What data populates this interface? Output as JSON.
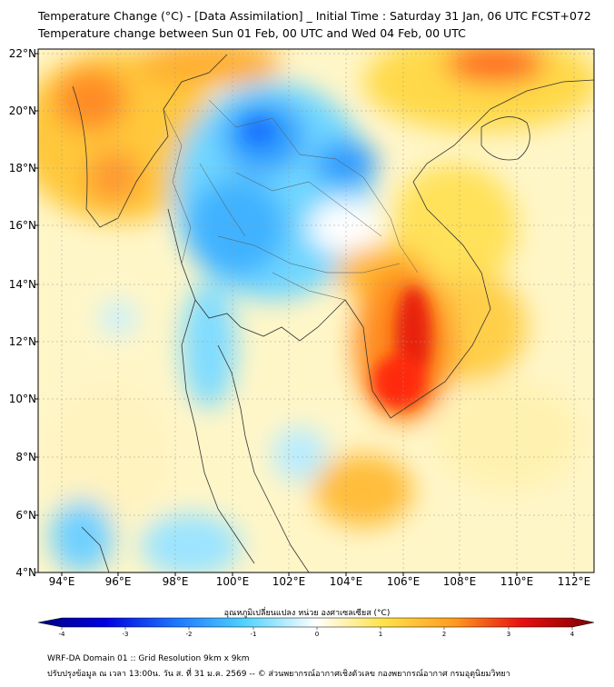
{
  "header": {
    "title_line1": "Temperature Change (°C) - [Data Assimilation] _ Initial Time : Saturday 31 Jan, 06 UTC FCST+072",
    "title_line2": "Temperature change between Sun 01 Feb, 00 UTC and Wed 04 Feb, 00 UTC"
  },
  "map": {
    "latitude_labels": [
      "22°N",
      "20°N",
      "18°N",
      "16°N",
      "14°N",
      "12°N",
      "10°N",
      "8°N",
      "6°N",
      "4°N"
    ],
    "longitude_labels": [
      "94°E",
      "96°E",
      "98°E",
      "100°E",
      "102°E",
      "104°E",
      "106°E",
      "108°E",
      "110°E",
      "112°E"
    ],
    "lon_range": [
      93,
      112.5
    ],
    "lat_range": [
      4,
      22.3
    ]
  },
  "colorbar": {
    "title": "อุณหภูมิเปลี่ยนแปลง หน่วย องศาเซลเซียส (°C)",
    "ticks": [
      "-4",
      "-3",
      "-2",
      "-1",
      "0",
      "1",
      "2",
      "3",
      "4"
    ],
    "range": [
      -4,
      4
    ]
  },
  "footer": {
    "line1": "WRF-DA Domain 01 :: Grid Resolution 9km x 9km",
    "line2": "ปรับปรุงข้อมูล ณ เวลา 13:00น. วัน ส. ที่ 31 ม.ค. 2569 -- © ส่วนพยากรณ์อากาศเชิงตัวเลข กองพยากรณ์อากาศ กรมอุตุนิยมวิทยา"
  },
  "colors": {
    "cold_max": "#00007f",
    "blue": "#1e78ff",
    "cyan": "#4fd2ff",
    "neutral": "#fffde8",
    "yellow": "#ffe34a",
    "orange": "#ff9a1e",
    "red": "#e81010",
    "warm_max": "#7f0000"
  }
}
